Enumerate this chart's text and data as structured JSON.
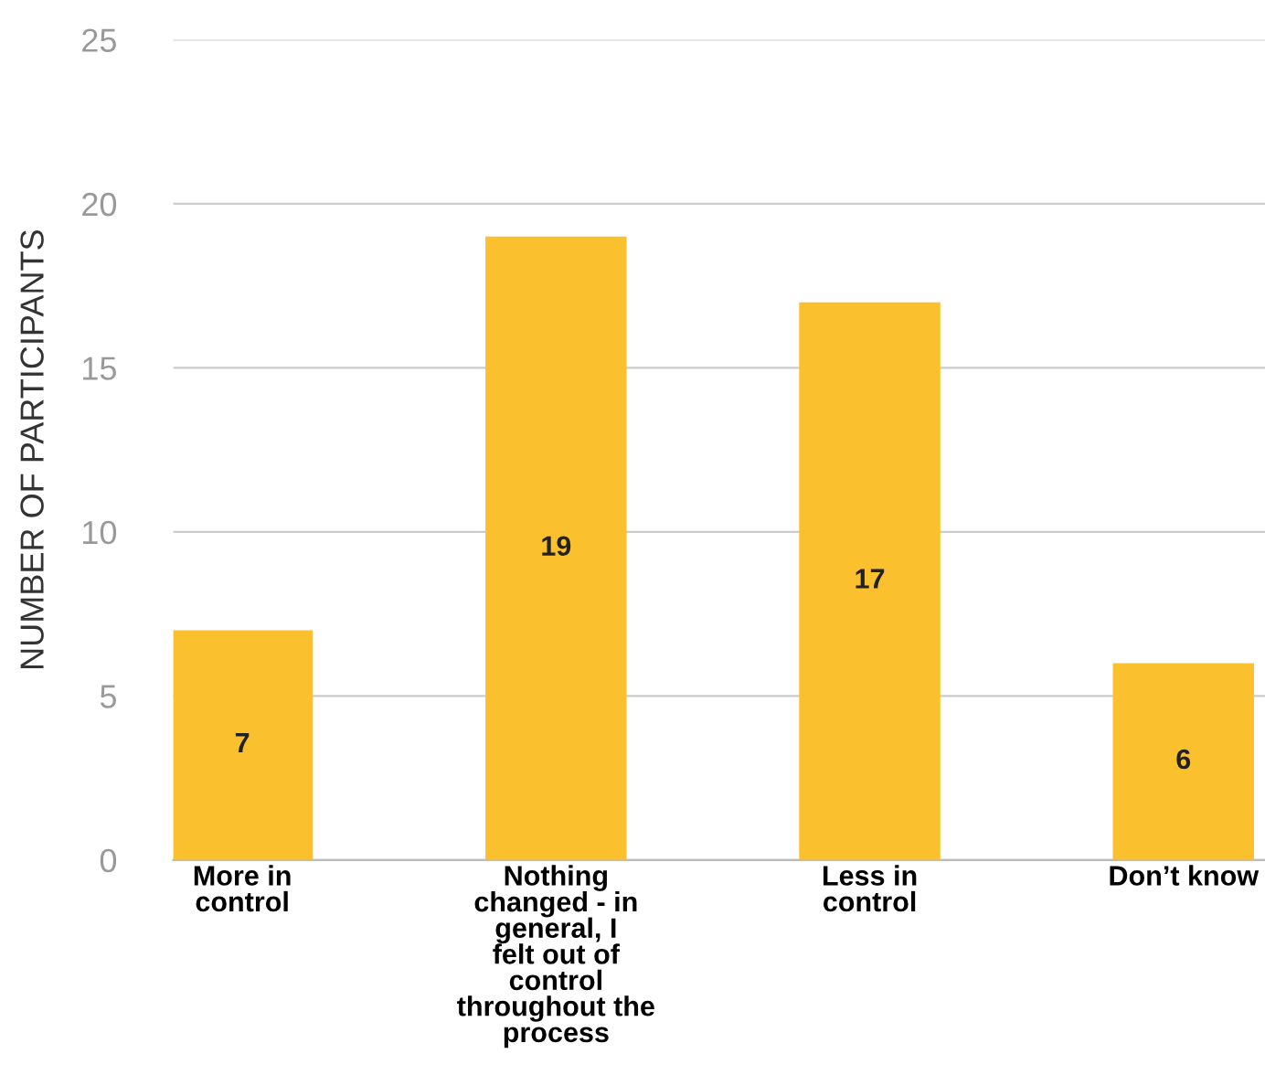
{
  "chart_data": {
    "type": "bar",
    "ylabel": "NUMBER OF PARTICIPANTS",
    "categories": [
      "More in control",
      "Nothing changed - in general, I felt out of control throughout the process",
      "Less in control",
      "Don’t know"
    ],
    "values": [
      7,
      19,
      17,
      6
    ],
    "color": "#fbc02d",
    "data_labels": true,
    "grid": "y",
    "ylim": [
      0,
      25
    ],
    "yticks": [
      0,
      5,
      10,
      15,
      20,
      25
    ]
  }
}
